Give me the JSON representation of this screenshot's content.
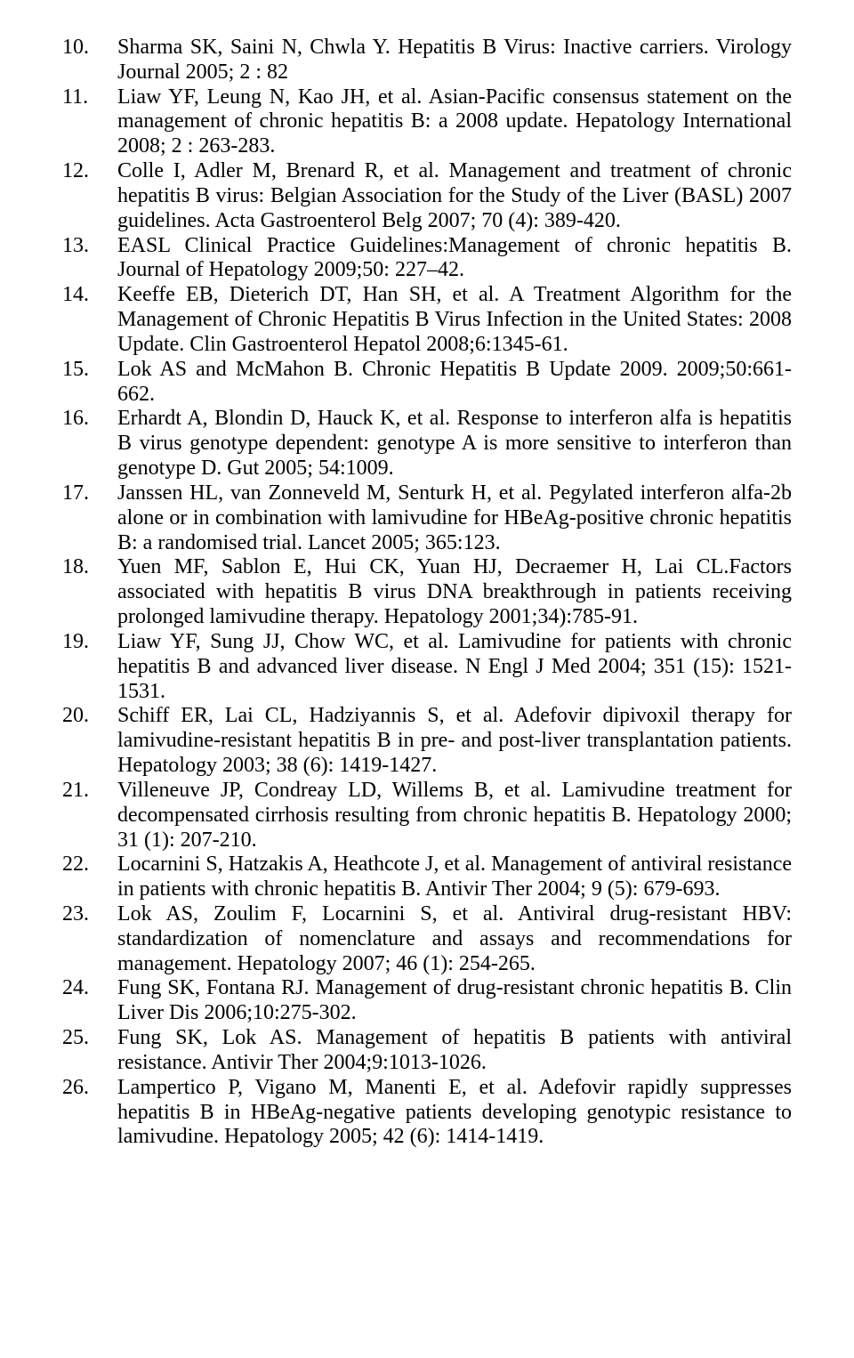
{
  "references": [
    {
      "num": "10.",
      "text": "Sharma SK, Saini N, Chwla Y. Hepatitis B Virus: Inactive carriers.  Virology Journal 2005; 2 : 82"
    },
    {
      "num": "11.",
      "text": "Liaw YF, Leung N, Kao JH, et al.  Asian-Pacific consensus statement on the management of chronic hepatitis B: a 2008 update.  Hepatology International 2008; 2 : 263-283."
    },
    {
      "num": "12.",
      "text": "Colle I, Adler M, Brenard R, et al.  Management and treatment of chronic hepatitis B virus: Belgian Association for the Study of the Liver (BASL) 2007 guidelines.  Acta Gastroenterol Belg 2007; 70 (4): 389-420."
    },
    {
      "num": "13.",
      "text": "EASL Clinical Practice Guidelines:Management of chronic hepatitis B. Journal of Hepatology 2009;50: 227–42."
    },
    {
      "num": "14.",
      "text": "Keeffe EB, Dieterich DT, Han SH, et al.  A Treatment Algorithm for the Management of Chronic Hepatitis B Virus Infection in the United States: 2008 Update. Clin Gastroenterol Hepatol 2008;6:1345-61."
    },
    {
      "num": "15.",
      "text": "Lok AS and McMahon B. Chronic Hepatitis B Update 2009. 2009;50:661-662."
    },
    {
      "num": "16.",
      "text": "Erhardt A, Blondin D, Hauck K, et al. Response to interferon alfa is hepatitis B virus genotype dependent: genotype A is more sensitive to interferon than genotype D. Gut 2005; 54:1009."
    },
    {
      "num": "17.",
      "text": "Janssen HL, van Zonneveld M, Senturk H, et al. Pegylated interferon alfa-2b alone or in combination with lamivudine for HBeAg-positive chronic hepatitis B: a randomised trial. Lancet 2005; 365:123."
    },
    {
      "num": "18.",
      "text": "Yuen MF, Sablon E, Hui CK, Yuan HJ, Decraemer H, Lai CL.Factors associated with hepatitis B virus DNA breakthrough in patients receiving prolonged lamivudine therapy. Hepatology 2001;34):785-91."
    },
    {
      "num": "19.",
      "text": "Liaw YF, Sung JJ, Chow WC, et al.  Lamivudine for patients with chronic hepatitis B and advanced liver disease.  N Engl J Med 2004; 351 (15): 1521-1531."
    },
    {
      "num": "20.",
      "text": "Schiff ER, Lai CL, Hadziyannis S, et al.  Adefovir dipivoxil therapy for lamivudine-resistant hepatitis B in pre- and post-liver transplantation patients.  Hepatology 2003; 38 (6): 1419-1427."
    },
    {
      "num": "21.",
      "text": "Villeneuve JP, Condreay LD, Willems B, et al.  Lamivudine treatment for decompensated cirrhosis resulting from chronic hepatitis B.  Hepatology 2000; 31 (1): 207-210."
    },
    {
      "num": "22.",
      "text": "Locarnini S, Hatzakis A, Heathcote J, et al.  Management of antiviral resistance in patients with chronic hepatitis B.  Antivir Ther 2004; 9 (5): 679-693."
    },
    {
      "num": "23.",
      "text": "Lok AS, Zoulim F, Locarnini S, et al.  Antiviral drug-resistant HBV: standardization of nomenclature and assays and recommendations for management.  Hepatology 2007; 46 (1): 254-265."
    },
    {
      "num": "24.",
      "text": "Fung SK, Fontana RJ. Management of drug-resistant chronic hepatitis B. Clin Liver Dis 2006;10:275-302."
    },
    {
      "num": "25.",
      "text": "Fung SK, Lok AS. Management of hepatitis B patients with antiviral resistance. Antivir Ther 2004;9:1013-1026."
    },
    {
      "num": "26.",
      "text": "Lampertico P, Vigano M, Manenti E, et al.  Adefovir rapidly suppresses hepatitis B in HBeAg-negative patients developing genotypic resistance to lamivudine.  Hepatology 2005; 42 (6): 1414-1419."
    }
  ]
}
